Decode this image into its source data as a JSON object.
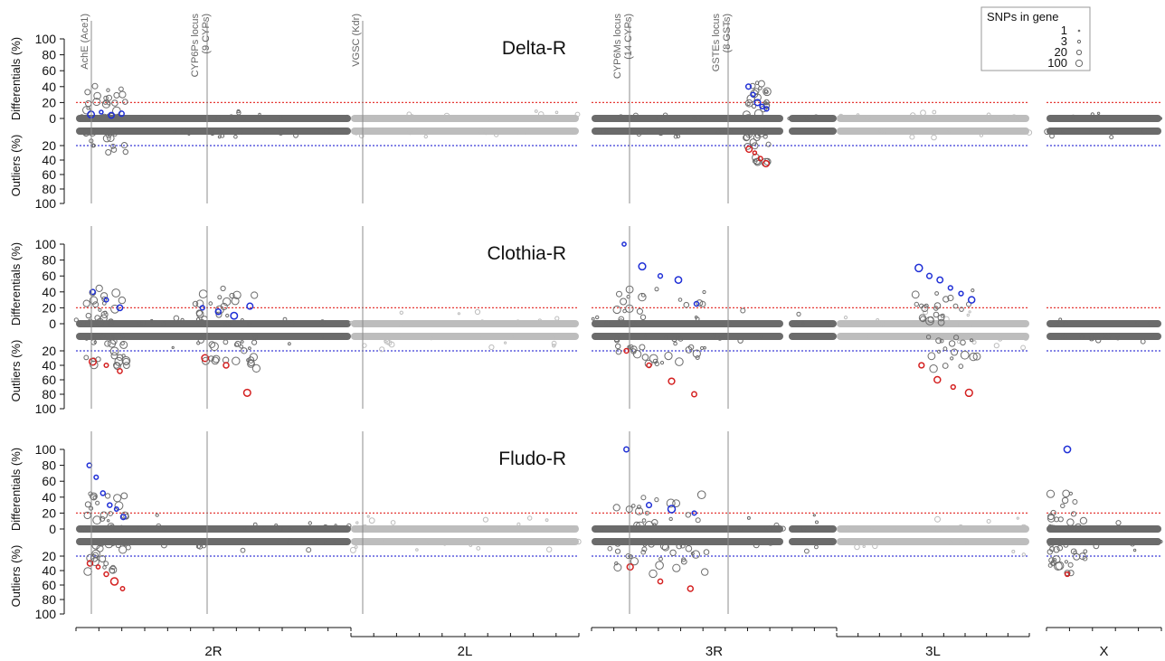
{
  "chart_data": {
    "type": "scatter",
    "y_top_label": "Differentials (%)",
    "y_bottom_label": "Outliers (%)",
    "y_ticks_top": [
      "100",
      "80",
      "60",
      "40",
      "20",
      "0"
    ],
    "y_ticks_bottom": [
      "20",
      "40",
      "60",
      "80",
      "100"
    ],
    "ylim_top": [
      0,
      100
    ],
    "ylim_bottom": [
      0,
      100
    ],
    "threshold_percent": 20,
    "arms": [
      "2R",
      "2L",
      "3R",
      "3L",
      "X"
    ],
    "loci": [
      "AchE (Ace1)",
      "CYP6Ps locus (9 CYPs)",
      "VGSC (Kdr)",
      "CYP6Ms locus (14 CYPs)",
      "GSTEs locus (8 GSTs)"
    ],
    "legend": {
      "title": "SNPs in gene",
      "entries": [
        "1",
        "3",
        "20",
        "100"
      ]
    },
    "colors": {
      "differential": "#1f2fd6",
      "outlier": "#d42020",
      "baseline_dark": "#6b6b6b",
      "baseline_light": "#bdbdbd",
      "upper_threshold": "#e53935",
      "lower_threshold": "#3a3ad8",
      "locus_line": "#8c8c8c"
    },
    "panels": [
      {
        "name": "Delta-R",
        "highlights": [
          {
            "locus": "AchE (Ace1)",
            "differentials": [
              5,
              8,
              4,
              6
            ],
            "outliers": []
          },
          {
            "locus": "GSTEs locus (8 GSTs)",
            "differentials": [
              40,
              30,
              20,
              15,
              12
            ],
            "outliers": [
              25,
              30,
              38,
              45
            ]
          }
        ]
      },
      {
        "name": "Clothia-R",
        "highlights": [
          {
            "locus": "AchE (Ace1)",
            "differentials": [
              40,
              30,
              20
            ],
            "outliers": [
              35,
              40,
              48
            ]
          },
          {
            "locus": "CYP6Ps locus (9 CYPs)",
            "differentials": [
              20,
              15,
              10,
              22
            ],
            "outliers": [
              30,
              40,
              78
            ]
          },
          {
            "locus": "CYP6Ms locus (14 CYPs)",
            "differentials": [
              100,
              72,
              60,
              55,
              25
            ],
            "outliers": [
              20,
              40,
              62,
              80
            ]
          },
          {
            "locus": "3L",
            "differentials": [
              70,
              60,
              55,
              45,
              38,
              30
            ],
            "outliers": [
              40,
              60,
              70,
              78
            ]
          }
        ]
      },
      {
        "name": "Fludo-R",
        "highlights": [
          {
            "locus": "AchE (Ace1)",
            "differentials": [
              80,
              65,
              45,
              30,
              25,
              15
            ],
            "outliers": [
              30,
              35,
              45,
              55,
              65
            ]
          },
          {
            "locus": "CYP6Ms locus (14 CYPs)",
            "differentials": [
              100,
              30,
              25,
              20
            ],
            "outliers": [
              35,
              55,
              65
            ]
          },
          {
            "locus": "X",
            "differentials": [
              100
            ],
            "outliers": [
              45
            ]
          }
        ]
      }
    ]
  }
}
